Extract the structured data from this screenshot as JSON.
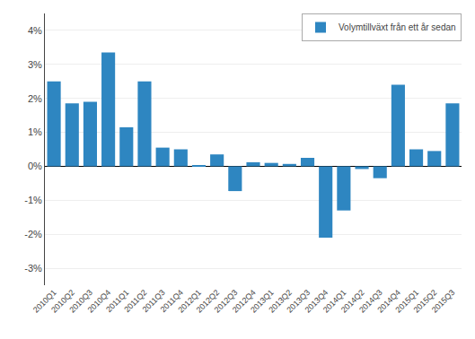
{
  "chart_data": {
    "type": "bar",
    "categories": [
      "2010Q1",
      "2010Q2",
      "2010Q3",
      "2010Q4",
      "2011Q1",
      "2011Q2",
      "2011Q3",
      "2011Q4",
      "2012Q1",
      "2012Q2",
      "2012Q3",
      "2012Q4",
      "2013Q1",
      "2013Q2",
      "2013Q3",
      "2013Q4",
      "2014Q1",
      "2014Q2",
      "2014Q3",
      "2014Q4",
      "2015Q1",
      "2015Q2",
      "2015Q3"
    ],
    "series": [
      {
        "name": "Volymtillväxt från ett år sedan",
        "color": "#2e86c1",
        "values": [
          2.5,
          1.85,
          1.9,
          3.35,
          1.15,
          2.5,
          0.55,
          0.5,
          0.02,
          0.35,
          -0.73,
          0.12,
          0.1,
          0.07,
          0.25,
          -2.1,
          -1.3,
          -0.08,
          -0.35,
          2.4,
          0.5,
          0.45,
          1.85
        ]
      }
    ],
    "ylim": [
      -3.5,
      4.5
    ],
    "yticks": [
      {
        "value": -3,
        "label": "-3%"
      },
      {
        "value": -2,
        "label": "-2%"
      },
      {
        "value": -1,
        "label": "-1%"
      },
      {
        "value": 0,
        "label": "0%"
      },
      {
        "value": 1,
        "label": "1%"
      },
      {
        "value": 2,
        "label": "2%"
      },
      {
        "value": 3,
        "label": "3%"
      },
      {
        "value": 4,
        "label": "4%"
      }
    ],
    "grid": true,
    "legend": "upper right"
  }
}
